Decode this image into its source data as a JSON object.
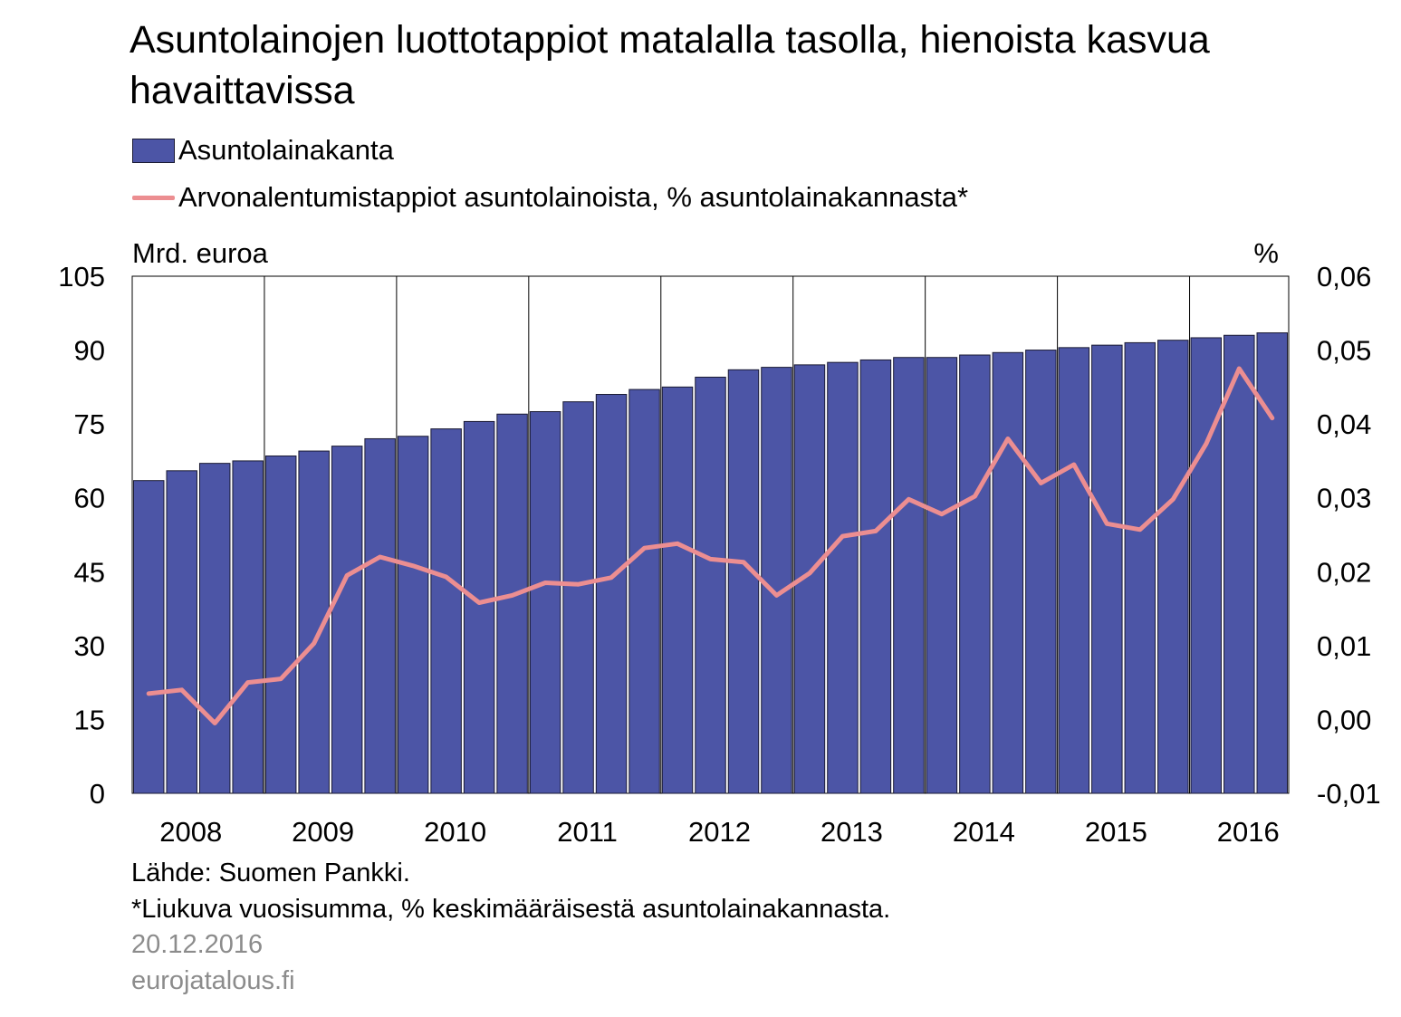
{
  "chart_data": {
    "type": "bar",
    "title": "Asuntolainojen luottotappiot matalalla tasolla, hienoista kasvua havaittavissa",
    "y_left_label": "Mrd. euroa",
    "y_right_label": "%",
    "y_left_lim": [
      0,
      105
    ],
    "y_left_ticks": [
      "105",
      "90",
      "75",
      "60",
      "45",
      "30",
      "15",
      "0"
    ],
    "y_right_lim": [
      -0.01,
      0.06
    ],
    "y_right_ticks": [
      "0,06",
      "0,05",
      "0,04",
      "0,03",
      "0,02",
      "0,01",
      "0,00",
      "-0,01"
    ],
    "x_tick_labels": [
      "2008",
      "2009",
      "2010",
      "2011",
      "2012",
      "2013",
      "2014",
      "2015",
      "2016"
    ],
    "grid": "vertical lines at year boundaries",
    "legend_position": "top-left",
    "series": [
      {
        "name": "Asuntolainakanta",
        "type": "bar",
        "axis": "left",
        "color": "#4c55a6",
        "values": [
          63.5,
          65.5,
          67,
          67.5,
          68.5,
          69.5,
          70.5,
          72,
          72.5,
          74,
          75.5,
          77,
          77.5,
          79.5,
          81,
          82,
          82.5,
          84.5,
          86,
          86.5,
          87,
          87.5,
          88,
          88.5,
          88.5,
          89,
          89.5,
          90,
          90.5,
          91,
          91.5,
          92,
          92.5,
          93,
          93.5
        ]
      },
      {
        "name": "Arvonalentumistappiot asuntolainoista, % asuntolainakannasta*",
        "type": "line",
        "axis": "right",
        "color": "#ec8e91",
        "values": [
          0.0035,
          0.004,
          -0.0005,
          0.005,
          0.0055,
          0.0103,
          0.0195,
          0.022,
          0.0208,
          0.0193,
          0.0158,
          0.0168,
          0.0185,
          0.0183,
          0.0192,
          0.0232,
          0.0238,
          0.0217,
          0.0213,
          0.0168,
          0.0198,
          0.0248,
          0.0255,
          0.0298,
          0.0278,
          0.0302,
          0.038,
          0.032,
          0.0345,
          0.0265,
          0.0257,
          0.0298,
          0.0373,
          0.0475,
          0.0408
        ]
      }
    ]
  },
  "notes": {
    "source": "Lähde: Suomen Pankki.",
    "footnote": "*Liukuva vuosisumma, % keskimääräisestä asuntolainakannasta.",
    "date": "20.12.2016",
    "site": "eurojatalous.fi"
  }
}
